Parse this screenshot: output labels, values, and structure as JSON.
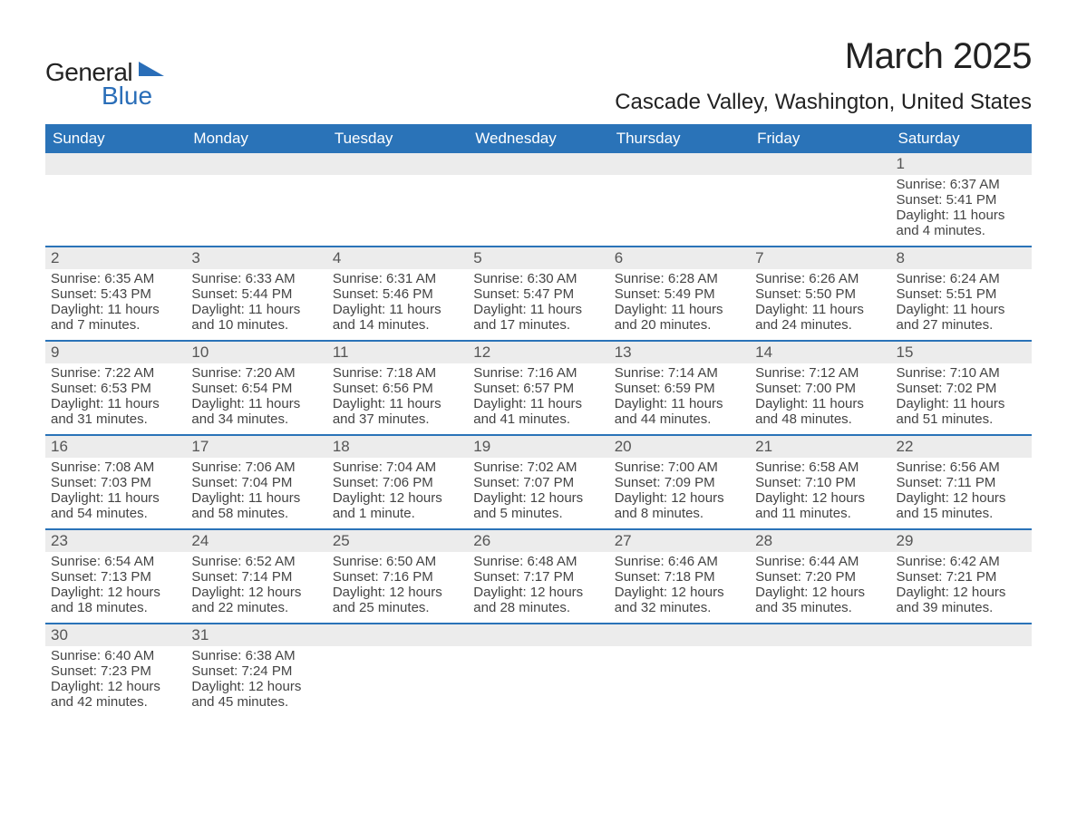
{
  "logo": {
    "text_main": "General",
    "text_sub": "Blue",
    "triangle_color": "#2a6eb8"
  },
  "month_title": "March 2025",
  "location": "Cascade Valley, Washington, United States",
  "colors": {
    "header_bg": "#2a73b8",
    "header_text": "#ffffff",
    "daynum_bg": "#ececec",
    "week_divider": "#2a73b8",
    "body_text": "#444444",
    "bg": "#ffffff"
  },
  "weekdays": [
    "Sunday",
    "Monday",
    "Tuesday",
    "Wednesday",
    "Thursday",
    "Friday",
    "Saturday"
  ],
  "weeks": [
    [
      {
        "n": "",
        "lines": [
          "",
          "",
          "",
          ""
        ]
      },
      {
        "n": "",
        "lines": [
          "",
          "",
          "",
          ""
        ]
      },
      {
        "n": "",
        "lines": [
          "",
          "",
          "",
          ""
        ]
      },
      {
        "n": "",
        "lines": [
          "",
          "",
          "",
          ""
        ]
      },
      {
        "n": "",
        "lines": [
          "",
          "",
          "",
          ""
        ]
      },
      {
        "n": "",
        "lines": [
          "",
          "",
          "",
          ""
        ]
      },
      {
        "n": "1",
        "lines": [
          "Sunrise: 6:37 AM",
          "Sunset: 5:41 PM",
          "Daylight: 11 hours",
          "and 4 minutes."
        ]
      }
    ],
    [
      {
        "n": "2",
        "lines": [
          "Sunrise: 6:35 AM",
          "Sunset: 5:43 PM",
          "Daylight: 11 hours",
          "and 7 minutes."
        ]
      },
      {
        "n": "3",
        "lines": [
          "Sunrise: 6:33 AM",
          "Sunset: 5:44 PM",
          "Daylight: 11 hours",
          "and 10 minutes."
        ]
      },
      {
        "n": "4",
        "lines": [
          "Sunrise: 6:31 AM",
          "Sunset: 5:46 PM",
          "Daylight: 11 hours",
          "and 14 minutes."
        ]
      },
      {
        "n": "5",
        "lines": [
          "Sunrise: 6:30 AM",
          "Sunset: 5:47 PM",
          "Daylight: 11 hours",
          "and 17 minutes."
        ]
      },
      {
        "n": "6",
        "lines": [
          "Sunrise: 6:28 AM",
          "Sunset: 5:49 PM",
          "Daylight: 11 hours",
          "and 20 minutes."
        ]
      },
      {
        "n": "7",
        "lines": [
          "Sunrise: 6:26 AM",
          "Sunset: 5:50 PM",
          "Daylight: 11 hours",
          "and 24 minutes."
        ]
      },
      {
        "n": "8",
        "lines": [
          "Sunrise: 6:24 AM",
          "Sunset: 5:51 PM",
          "Daylight: 11 hours",
          "and 27 minutes."
        ]
      }
    ],
    [
      {
        "n": "9",
        "lines": [
          "Sunrise: 7:22 AM",
          "Sunset: 6:53 PM",
          "Daylight: 11 hours",
          "and 31 minutes."
        ]
      },
      {
        "n": "10",
        "lines": [
          "Sunrise: 7:20 AM",
          "Sunset: 6:54 PM",
          "Daylight: 11 hours",
          "and 34 minutes."
        ]
      },
      {
        "n": "11",
        "lines": [
          "Sunrise: 7:18 AM",
          "Sunset: 6:56 PM",
          "Daylight: 11 hours",
          "and 37 minutes."
        ]
      },
      {
        "n": "12",
        "lines": [
          "Sunrise: 7:16 AM",
          "Sunset: 6:57 PM",
          "Daylight: 11 hours",
          "and 41 minutes."
        ]
      },
      {
        "n": "13",
        "lines": [
          "Sunrise: 7:14 AM",
          "Sunset: 6:59 PM",
          "Daylight: 11 hours",
          "and 44 minutes."
        ]
      },
      {
        "n": "14",
        "lines": [
          "Sunrise: 7:12 AM",
          "Sunset: 7:00 PM",
          "Daylight: 11 hours",
          "and 48 minutes."
        ]
      },
      {
        "n": "15",
        "lines": [
          "Sunrise: 7:10 AM",
          "Sunset: 7:02 PM",
          "Daylight: 11 hours",
          "and 51 minutes."
        ]
      }
    ],
    [
      {
        "n": "16",
        "lines": [
          "Sunrise: 7:08 AM",
          "Sunset: 7:03 PM",
          "Daylight: 11 hours",
          "and 54 minutes."
        ]
      },
      {
        "n": "17",
        "lines": [
          "Sunrise: 7:06 AM",
          "Sunset: 7:04 PM",
          "Daylight: 11 hours",
          "and 58 minutes."
        ]
      },
      {
        "n": "18",
        "lines": [
          "Sunrise: 7:04 AM",
          "Sunset: 7:06 PM",
          "Daylight: 12 hours",
          "and 1 minute."
        ]
      },
      {
        "n": "19",
        "lines": [
          "Sunrise: 7:02 AM",
          "Sunset: 7:07 PM",
          "Daylight: 12 hours",
          "and 5 minutes."
        ]
      },
      {
        "n": "20",
        "lines": [
          "Sunrise: 7:00 AM",
          "Sunset: 7:09 PM",
          "Daylight: 12 hours",
          "and 8 minutes."
        ]
      },
      {
        "n": "21",
        "lines": [
          "Sunrise: 6:58 AM",
          "Sunset: 7:10 PM",
          "Daylight: 12 hours",
          "and 11 minutes."
        ]
      },
      {
        "n": "22",
        "lines": [
          "Sunrise: 6:56 AM",
          "Sunset: 7:11 PM",
          "Daylight: 12 hours",
          "and 15 minutes."
        ]
      }
    ],
    [
      {
        "n": "23",
        "lines": [
          "Sunrise: 6:54 AM",
          "Sunset: 7:13 PM",
          "Daylight: 12 hours",
          "and 18 minutes."
        ]
      },
      {
        "n": "24",
        "lines": [
          "Sunrise: 6:52 AM",
          "Sunset: 7:14 PM",
          "Daylight: 12 hours",
          "and 22 minutes."
        ]
      },
      {
        "n": "25",
        "lines": [
          "Sunrise: 6:50 AM",
          "Sunset: 7:16 PM",
          "Daylight: 12 hours",
          "and 25 minutes."
        ]
      },
      {
        "n": "26",
        "lines": [
          "Sunrise: 6:48 AM",
          "Sunset: 7:17 PM",
          "Daylight: 12 hours",
          "and 28 minutes."
        ]
      },
      {
        "n": "27",
        "lines": [
          "Sunrise: 6:46 AM",
          "Sunset: 7:18 PM",
          "Daylight: 12 hours",
          "and 32 minutes."
        ]
      },
      {
        "n": "28",
        "lines": [
          "Sunrise: 6:44 AM",
          "Sunset: 7:20 PM",
          "Daylight: 12 hours",
          "and 35 minutes."
        ]
      },
      {
        "n": "29",
        "lines": [
          "Sunrise: 6:42 AM",
          "Sunset: 7:21 PM",
          "Daylight: 12 hours",
          "and 39 minutes."
        ]
      }
    ],
    [
      {
        "n": "30",
        "lines": [
          "Sunrise: 6:40 AM",
          "Sunset: 7:23 PM",
          "Daylight: 12 hours",
          "and 42 minutes."
        ]
      },
      {
        "n": "31",
        "lines": [
          "Sunrise: 6:38 AM",
          "Sunset: 7:24 PM",
          "Daylight: 12 hours",
          "and 45 minutes."
        ]
      },
      {
        "n": "",
        "lines": [
          "",
          "",
          "",
          ""
        ]
      },
      {
        "n": "",
        "lines": [
          "",
          "",
          "",
          ""
        ]
      },
      {
        "n": "",
        "lines": [
          "",
          "",
          "",
          ""
        ]
      },
      {
        "n": "",
        "lines": [
          "",
          "",
          "",
          ""
        ]
      },
      {
        "n": "",
        "lines": [
          "",
          "",
          "",
          ""
        ]
      }
    ]
  ]
}
